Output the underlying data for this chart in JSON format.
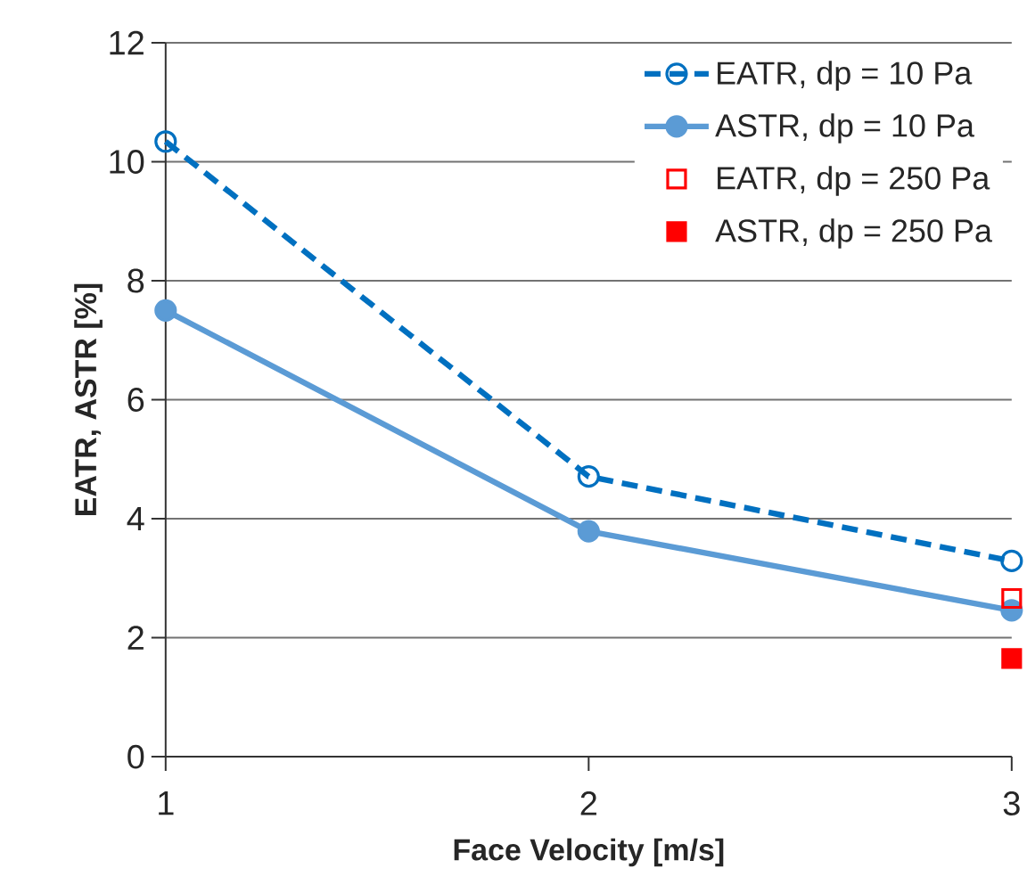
{
  "chart_data": {
    "type": "line",
    "xlabel": "Face Velocity [m/s]",
    "ylabel": "EATR, ASTR [%]",
    "x": [
      1,
      2,
      3
    ],
    "xlim": [
      1,
      3
    ],
    "xticks": [
      1,
      2,
      3
    ],
    "ylim": [
      0,
      12
    ],
    "yticks": [
      0,
      2,
      4,
      6,
      8,
      10,
      12
    ],
    "grid": "y",
    "legend": "top right",
    "series": [
      {
        "name": "EATR, dp = 10 Pa",
        "color": "#0070c0",
        "values": [
          10.34,
          4.71,
          3.29
        ],
        "line_style": "dashed",
        "marker": "circle"
      },
      {
        "name": "ASTR, dp = 10 Pa",
        "color": "#5b9bd5",
        "values": [
          7.5,
          3.79,
          2.46
        ],
        "line_style": "solid",
        "marker": "circle"
      },
      {
        "name": "EATR, dp = 250 Pa",
        "type": "scatter",
        "color": "#ff0000",
        "x": [
          3
        ],
        "values": [
          2.66
        ],
        "marker": "square"
      },
      {
        "name": "ASTR, dp = 250 Pa",
        "type": "scatter",
        "color": "#ff0000",
        "x": [
          3
        ],
        "values": [
          1.65
        ],
        "marker": "square"
      }
    ]
  }
}
